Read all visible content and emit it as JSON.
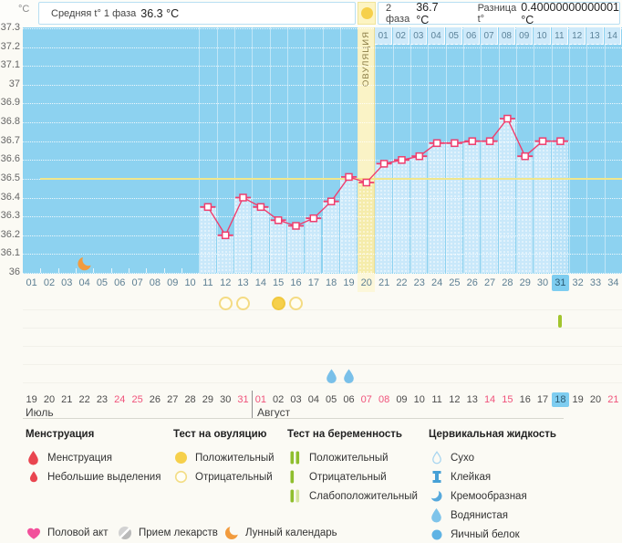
{
  "header": {
    "unit": "°C",
    "phase1_label": "Средняя t° 1 фаза",
    "phase1_value": "36.3 °C",
    "phase2_label": "2 фаза",
    "phase2_value": "36.7 °C",
    "diff_label": "Разница t°",
    "diff_value": "0.40000000000001 °C",
    "ovulation_vertical": "ОВУЛЯЦИЯ"
  },
  "chart_data": {
    "type": "line",
    "ylabel": "°C",
    "ylim": [
      36,
      37.3
    ],
    "ytick_labels": [
      "37.3",
      "37.2",
      "37.1",
      "37",
      "36.9",
      "36.8",
      "36.7",
      "36.6",
      "36.5",
      "36.4",
      "36.3",
      "36.2",
      "36.1",
      "36"
    ],
    "x_labels": [
      "01",
      "02",
      "03",
      "04",
      "05",
      "06",
      "07",
      "08",
      "09",
      "10",
      "11",
      "12",
      "13",
      "14",
      "15",
      "16",
      "17",
      "18",
      "19",
      "20",
      "21",
      "22",
      "23",
      "24",
      "25",
      "26",
      "27",
      "28",
      "29",
      "30",
      "31",
      "32",
      "33",
      "34"
    ],
    "dpo_labels": [
      "01",
      "02",
      "03",
      "04",
      "05",
      "06",
      "07",
      "08",
      "09",
      "10",
      "11",
      "12",
      "13",
      "14"
    ],
    "coverline": 36.5,
    "ovulation_day": 20,
    "current_day": 31,
    "phase1_avg": 36.3,
    "phase2_avg": 36.7,
    "difference": 0.40000000000001,
    "grid": true,
    "series": [
      {
        "name": "базальная температура",
        "points": [
          {
            "day": 11,
            "t": 36.35
          },
          {
            "day": 12,
            "t": 36.2
          },
          {
            "day": 13,
            "t": 36.4
          },
          {
            "day": 14,
            "t": 36.35
          },
          {
            "day": 15,
            "t": 36.28
          },
          {
            "day": 16,
            "t": 36.25
          },
          {
            "day": 17,
            "t": 36.29
          },
          {
            "day": 18,
            "t": 36.38
          },
          {
            "day": 19,
            "t": 36.51
          },
          {
            "day": 20,
            "t": 36.48
          },
          {
            "day": 21,
            "t": 36.58
          },
          {
            "day": 22,
            "t": 36.6
          },
          {
            "day": 23,
            "t": 36.62
          },
          {
            "day": 24,
            "t": 36.69
          },
          {
            "day": 25,
            "t": 36.69
          },
          {
            "day": 26,
            "t": 36.7
          },
          {
            "day": 27,
            "t": 36.7
          },
          {
            "day": 28,
            "t": 36.82
          },
          {
            "day": 29,
            "t": 36.62
          },
          {
            "day": 30,
            "t": 36.7
          },
          {
            "day": 31,
            "t": 36.7
          }
        ]
      }
    ]
  },
  "markers": {
    "ovulation_tests": [
      {
        "day": 12,
        "result": "отрицательный"
      },
      {
        "day": 13,
        "result": "отрицательный"
      },
      {
        "day": 15,
        "result": "положительный"
      },
      {
        "day": 16,
        "result": "отрицательный"
      }
    ],
    "pregnancy_tests": [
      {
        "day": 31,
        "result": "отрицательный"
      }
    ],
    "cervical_fluid": [
      {
        "day": 18,
        "type": "водянистая"
      },
      {
        "day": 19,
        "type": "водянистая"
      }
    ],
    "lunar_calendar": [
      {
        "day": 4
      }
    ]
  },
  "calendar": {
    "month1_label": "Июль",
    "month2_label": "Август",
    "days": [
      {
        "date": "19",
        "weekend": false
      },
      {
        "date": "20",
        "weekend": false
      },
      {
        "date": "21",
        "weekend": false
      },
      {
        "date": "22",
        "weekend": false
      },
      {
        "date": "23",
        "weekend": false
      },
      {
        "date": "24",
        "weekend": true
      },
      {
        "date": "25",
        "weekend": true
      },
      {
        "date": "26",
        "weekend": false
      },
      {
        "date": "27",
        "weekend": false
      },
      {
        "date": "28",
        "weekend": false
      },
      {
        "date": "29",
        "weekend": false
      },
      {
        "date": "30",
        "weekend": false
      },
      {
        "date": "31",
        "weekend": true
      },
      {
        "date": "01",
        "weekend": true
      },
      {
        "date": "02",
        "weekend": false
      },
      {
        "date": "03",
        "weekend": false
      },
      {
        "date": "04",
        "weekend": false
      },
      {
        "date": "05",
        "weekend": false
      },
      {
        "date": "06",
        "weekend": false
      },
      {
        "date": "07",
        "weekend": true
      },
      {
        "date": "08",
        "weekend": true
      },
      {
        "date": "09",
        "weekend": false
      },
      {
        "date": "10",
        "weekend": false
      },
      {
        "date": "11",
        "weekend": false
      },
      {
        "date": "12",
        "weekend": false
      },
      {
        "date": "13",
        "weekend": false
      },
      {
        "date": "14",
        "weekend": true
      },
      {
        "date": "15",
        "weekend": true
      },
      {
        "date": "16",
        "weekend": false
      },
      {
        "date": "17",
        "weekend": false
      },
      {
        "date": "18",
        "weekend": false,
        "today": true
      },
      {
        "date": "19",
        "weekend": false
      },
      {
        "date": "20",
        "weekend": false
      },
      {
        "date": "21",
        "weekend": true
      }
    ]
  },
  "legend": {
    "menstruation": {
      "title": "Менструация",
      "items": [
        {
          "icon": "drop-red-icon",
          "label": "Менструация"
        },
        {
          "icon": "drop-red-small-icon",
          "label": "Небольшие выделения"
        }
      ]
    },
    "ovulation_test": {
      "title": "Тест на овуляцию",
      "items": [
        {
          "icon": "circle-filled-yellow-icon",
          "label": "Положительный"
        },
        {
          "icon": "circle-outline-yellow-icon",
          "label": "Отрицательный"
        }
      ]
    },
    "pregnancy_test": {
      "title": "Тест на беременность",
      "items": [
        {
          "icon": "bars-double-green-icon",
          "label": "Положительный"
        },
        {
          "icon": "bar-single-green-icon",
          "label": "Отрицательный"
        },
        {
          "icon": "bars-weak-green-icon",
          "label": "Слабоположительный"
        }
      ]
    },
    "cervical_fluid": {
      "title": "Цервикальная жидкость",
      "items": [
        {
          "icon": "drop-outline-icon",
          "label": "Сухо"
        },
        {
          "icon": "sticky-icon",
          "label": "Клейкая"
        },
        {
          "icon": "creamy-icon",
          "label": "Кремообразная"
        },
        {
          "icon": "drop-blue-icon",
          "label": "Водянистая"
        },
        {
          "icon": "eggwhite-icon",
          "label": "Яичный белок"
        }
      ]
    }
  },
  "footer": {
    "items": [
      {
        "icon": "heart-icon",
        "label": "Половой акт"
      },
      {
        "icon": "pill-icon",
        "label": "Прием лекарств"
      },
      {
        "icon": "moon-icon",
        "label": "Лунный календарь"
      }
    ]
  },
  "colors": {
    "temperature_line": "#ef3e6e",
    "chart_background": "#8dd2f0",
    "day_column_fill": "#c9e8fa",
    "ovulation_band": "#faf3c6",
    "coverline": "#f0e68c",
    "positive_test_yellow": "#f6d04b",
    "pregnancy_test_green": "#a2c52e",
    "cervical_fluid_blue": "#79c0e9",
    "menstruation_red": "#e9454f",
    "intercourse_pink": "#f2509b",
    "lunar_orange": "#f29b3d",
    "weekend_date_red": "#f0537b",
    "today_highlight_blue": "#7ecdf0"
  }
}
